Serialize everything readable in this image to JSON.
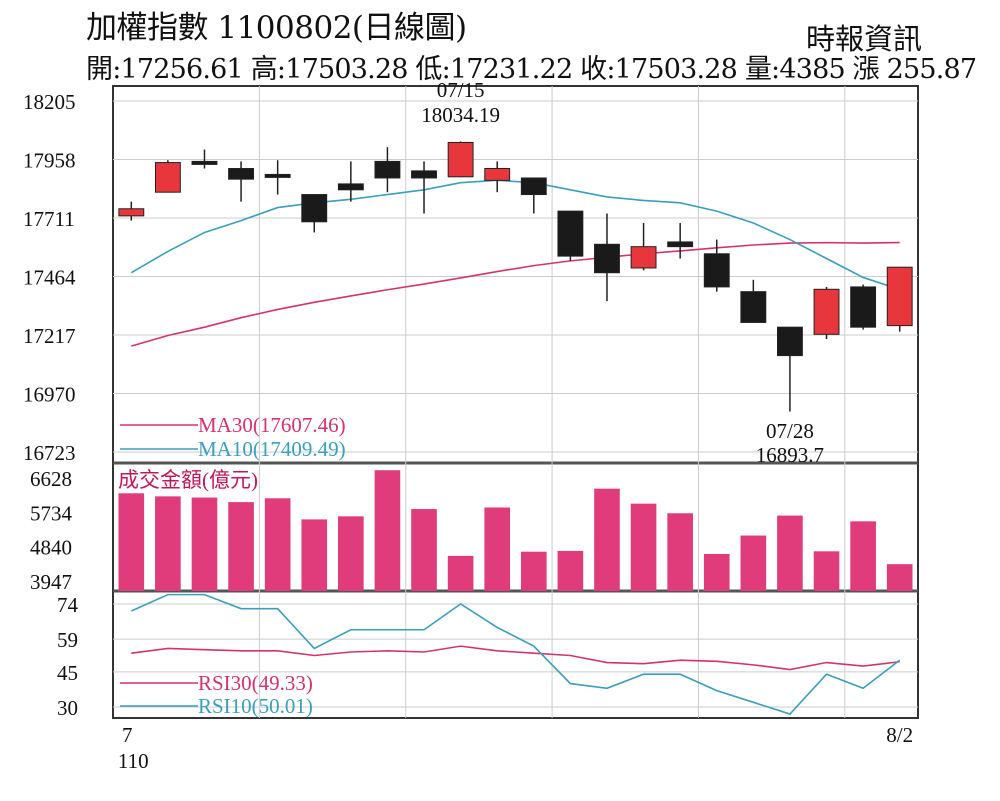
{
  "header": {
    "title": "加權指數 1100802(日線圖)",
    "source": "時報資訊",
    "stats": "開:17256.61 高:17503.28 低:17231.22 收:17503.28 量:4385 漲 255.87"
  },
  "colors": {
    "up": "#e8373c",
    "down": "#1a1a1a",
    "ma30": "#d6336c",
    "ma10": "#3a9fbf",
    "volume": "#e03c7c",
    "grid": "#cccccc"
  },
  "chart_data": [
    {
      "type": "candlestick",
      "ylim": [
        16723,
        18205
      ],
      "yticks": [
        18205,
        17958,
        17711,
        17464,
        17217,
        16970,
        16723
      ],
      "candles": [
        {
          "o": 17720,
          "h": 17780,
          "l": 17700,
          "c": 17750
        },
        {
          "o": 17820,
          "h": 17955,
          "l": 17820,
          "c": 17945
        },
        {
          "o": 17950,
          "h": 18000,
          "l": 17920,
          "c": 17940
        },
        {
          "o": 17920,
          "h": 17950,
          "l": 17780,
          "c": 17875
        },
        {
          "o": 17895,
          "h": 17955,
          "l": 17810,
          "c": 17890
        },
        {
          "o": 17810,
          "h": 17810,
          "l": 17650,
          "c": 17695
        },
        {
          "o": 17855,
          "h": 17950,
          "l": 17780,
          "c": 17830
        },
        {
          "o": 17950,
          "h": 18010,
          "l": 17820,
          "c": 17880
        },
        {
          "o": 17910,
          "h": 17950,
          "l": 17730,
          "c": 17880
        },
        {
          "o": 17885,
          "h": 18034.19,
          "l": 17885,
          "c": 18030
        },
        {
          "o": 17870,
          "h": 17950,
          "l": 17820,
          "c": 17920
        },
        {
          "o": 17880,
          "h": 17880,
          "l": 17730,
          "c": 17810
        },
        {
          "o": 17740,
          "h": 17740,
          "l": 17530,
          "c": 17550
        },
        {
          "o": 17600,
          "h": 17730,
          "l": 17360,
          "c": 17480
        },
        {
          "o": 17500,
          "h": 17690,
          "l": 17490,
          "c": 17590
        },
        {
          "o": 17610,
          "h": 17690,
          "l": 17540,
          "c": 17590
        },
        {
          "o": 17560,
          "h": 17620,
          "l": 17400,
          "c": 17420
        },
        {
          "o": 17400,
          "h": 17450,
          "l": 17270,
          "c": 17270
        },
        {
          "o": 17250,
          "h": 17250,
          "l": 16893.7,
          "c": 17130
        },
        {
          "o": 17220,
          "h": 17420,
          "l": 17200,
          "c": 17410
        },
        {
          "o": 17420,
          "h": 17430,
          "l": 17240,
          "c": 17250
        },
        {
          "o": 17256.61,
          "h": 17503.28,
          "l": 17231.22,
          "c": 17503.28
        }
      ],
      "ma30": [
        17170,
        17215,
        17250,
        17290,
        17325,
        17355,
        17382,
        17408,
        17432,
        17458,
        17485,
        17510,
        17530,
        17545,
        17560,
        17572,
        17585,
        17597,
        17605,
        17607,
        17605,
        17607.46
      ],
      "ma10": [
        17480,
        17570,
        17650,
        17700,
        17755,
        17775,
        17790,
        17810,
        17830,
        17860,
        17870,
        17860,
        17830,
        17800,
        17785,
        17775,
        17740,
        17690,
        17620,
        17540,
        17460,
        17409.49
      ],
      "annotations": [
        {
          "date": "07/15",
          "value": "18034.19"
        },
        {
          "date": "07/28",
          "value": "16893.7"
        }
      ],
      "legend": [
        "MA30(17607.46)",
        "MA10(17409.49)"
      ]
    },
    {
      "type": "bar",
      "title": "成交金額(億元)",
      "ylim": [
        3947,
        6628
      ],
      "yticks": [
        6628,
        5734,
        4840,
        3947
      ],
      "values": [
        6230,
        6150,
        6120,
        6000,
        6100,
        5550,
        5630,
        6830,
        5820,
        4600,
        5860,
        4710,
        4730,
        6350,
        5960,
        5710,
        4650,
        5130,
        5650,
        4720,
        5500,
        4385
      ]
    },
    {
      "type": "line",
      "ylim": [
        30,
        74
      ],
      "yticks": [
        74,
        59,
        45,
        30
      ],
      "series": [
        {
          "name": "RSI30(49.33)",
          "values": [
            53,
            55,
            54.5,
            54,
            54,
            52,
            53.5,
            54,
            53.5,
            56,
            54,
            53,
            52,
            49,
            48.5,
            50,
            49.5,
            48,
            46,
            49,
            47.5,
            49.33
          ]
        },
        {
          "name": "RSI10(50.01)",
          "values": [
            71,
            78,
            78,
            72,
            72,
            55,
            63,
            63,
            63,
            74,
            64,
            56,
            40,
            38,
            44,
            44,
            37,
            32,
            27,
            44,
            38,
            50.01
          ]
        }
      ]
    }
  ],
  "xaxis": {
    "start": "7",
    "start_year": "110",
    "end": "8/2"
  }
}
